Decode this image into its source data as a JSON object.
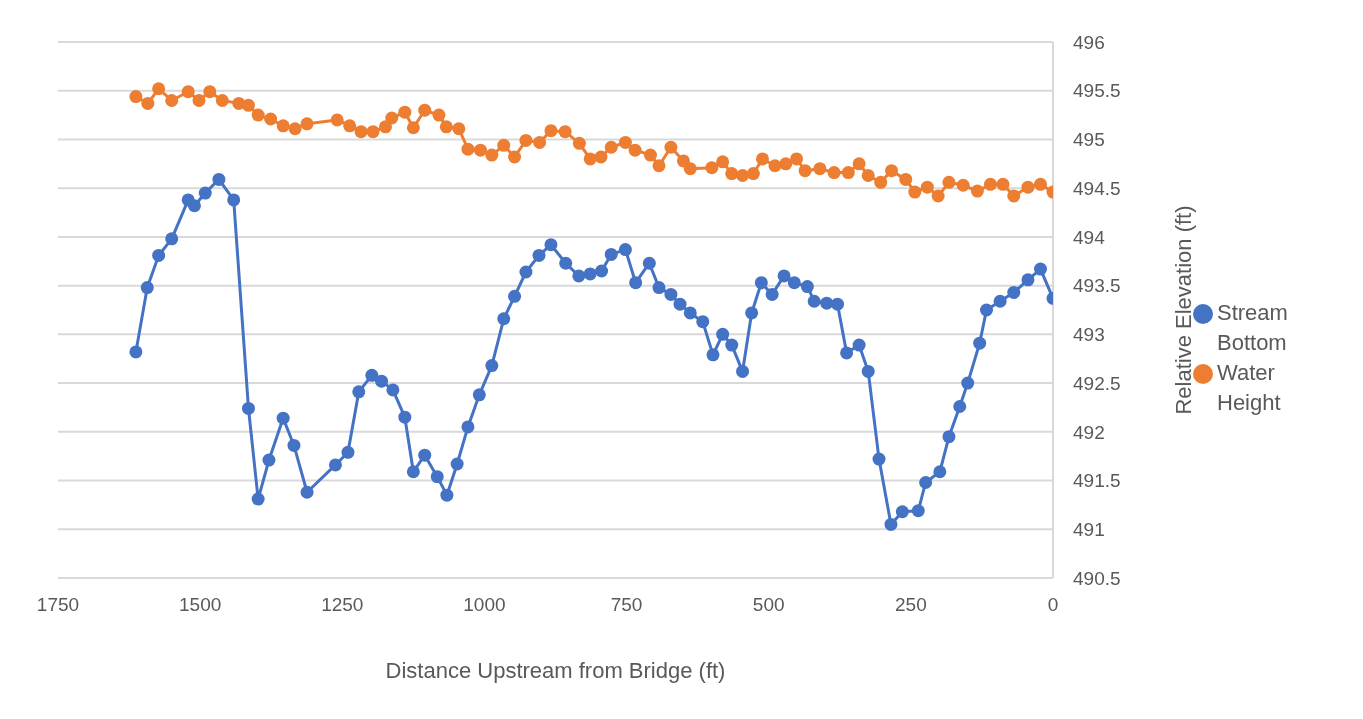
{
  "chart_data": {
    "type": "line",
    "xlabel": "Distance Upstream from Bridge (ft)",
    "ylabel": "Relative Elevation (ft)",
    "xlim": [
      1750,
      0
    ],
    "xticks": [
      1750,
      1500,
      1250,
      1000,
      750,
      500,
      250,
      0
    ],
    "ylim": [
      490.5,
      496
    ],
    "yticks": [
      490.5,
      491,
      491.5,
      492,
      492.5,
      493,
      493.5,
      494,
      494.5,
      495,
      495.5,
      496
    ],
    "grid": "y",
    "legend": "right",
    "marker": "circle",
    "line_style": "solid",
    "series": [
      {
        "name": "Stream Bottom",
        "color": "#4472c4",
        "x": [
          1613,
          1593,
          1573,
          1550,
          1521,
          1510,
          1491,
          1467,
          1441,
          1415,
          1398,
          1379,
          1354,
          1335,
          1312,
          1262,
          1240,
          1221,
          1198,
          1181,
          1161,
          1140,
          1125,
          1105,
          1083,
          1066,
          1048,
          1029,
          1009,
          987,
          966,
          947,
          927,
          904,
          883,
          857,
          834,
          814,
          794,
          777,
          752,
          734,
          710,
          693,
          672,
          656,
          638,
          616,
          598,
          581,
          565,
          546,
          530,
          513,
          494,
          473,
          455,
          432,
          420,
          398,
          379,
          363,
          341,
          325,
          306,
          285,
          265,
          237,
          224,
          199,
          183,
          164,
          150,
          129,
          117,
          93,
          69,
          44,
          22,
          0
        ],
        "values": [
          492.82,
          493.48,
          493.81,
          493.98,
          494.38,
          494.32,
          494.45,
          494.59,
          494.38,
          492.24,
          491.31,
          491.71,
          492.14,
          491.86,
          491.38,
          491.66,
          491.79,
          492.41,
          492.58,
          492.52,
          492.43,
          492.15,
          491.59,
          491.76,
          491.54,
          491.35,
          491.67,
          492.05,
          492.38,
          492.68,
          493.16,
          493.39,
          493.64,
          493.81,
          493.92,
          493.73,
          493.6,
          493.62,
          493.65,
          493.82,
          493.87,
          493.53,
          493.73,
          493.48,
          493.41,
          493.31,
          493.22,
          493.13,
          492.79,
          493.0,
          492.89,
          492.62,
          493.22,
          493.53,
          493.41,
          493.6,
          493.53,
          493.49,
          493.34,
          493.32,
          493.31,
          492.81,
          492.89,
          492.62,
          491.72,
          491.05,
          491.18,
          491.19,
          491.48,
          491.59,
          491.95,
          492.26,
          492.5,
          492.91,
          493.25,
          493.34,
          493.43,
          493.56,
          493.67,
          493.37
        ]
      },
      {
        "name": "Water Height",
        "color": "#ed7d31",
        "x": [
          1613,
          1592,
          1573,
          1550,
          1521,
          1502,
          1483,
          1461,
          1432,
          1415,
          1398,
          1376,
          1354,
          1333,
          1312,
          1259,
          1237,
          1217,
          1196,
          1174,
          1163,
          1140,
          1125,
          1105,
          1080,
          1067,
          1045,
          1029,
          1007,
          987,
          966,
          947,
          927,
          903,
          883,
          858,
          833,
          814,
          795,
          777,
          752,
          735,
          708,
          693,
          672,
          650,
          638,
          600,
          581,
          565,
          546,
          527,
          511,
          489,
          470,
          451,
          436,
          410,
          385,
          360,
          341,
          325,
          303,
          284,
          259,
          243,
          221,
          202,
          183,
          158,
          133,
          110,
          88,
          69,
          44,
          22,
          0
        ],
        "values": [
          495.44,
          495.37,
          495.52,
          495.4,
          495.49,
          495.4,
          495.49,
          495.4,
          495.37,
          495.35,
          495.25,
          495.21,
          495.14,
          495.11,
          495.16,
          495.2,
          495.14,
          495.08,
          495.08,
          495.13,
          495.22,
          495.28,
          495.12,
          495.3,
          495.25,
          495.13,
          495.11,
          494.9,
          494.89,
          494.84,
          494.94,
          494.82,
          494.99,
          494.97,
          495.09,
          495.08,
          494.96,
          494.8,
          494.82,
          494.92,
          494.97,
          494.89,
          494.84,
          494.73,
          494.92,
          494.78,
          494.7,
          494.71,
          494.77,
          494.65,
          494.63,
          494.65,
          494.8,
          494.73,
          494.75,
          494.8,
          494.68,
          494.7,
          494.66,
          494.66,
          494.75,
          494.63,
          494.56,
          494.68,
          494.59,
          494.46,
          494.51,
          494.42,
          494.56,
          494.53,
          494.47,
          494.54,
          494.54,
          494.42,
          494.51,
          494.54,
          494.46
        ]
      }
    ]
  }
}
